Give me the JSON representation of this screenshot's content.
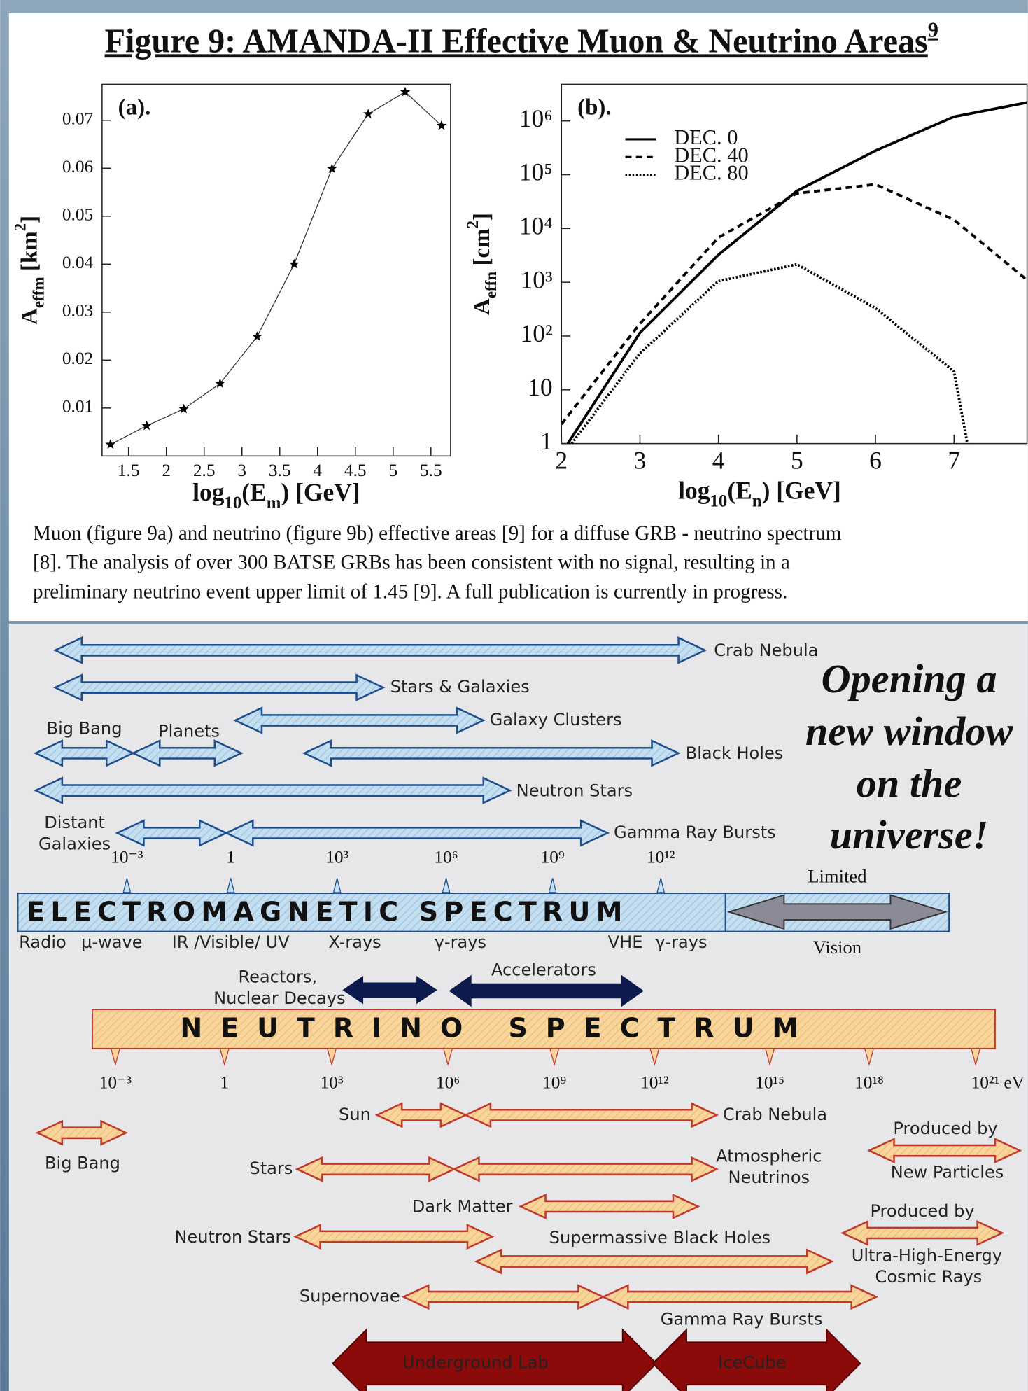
{
  "title": "Figure 9: AMANDA-II Effective Muon & Neutrino Areas",
  "title_superscript": "9",
  "chart_data": [
    {
      "type": "line",
      "panel_label": "(a).",
      "x_label": [
        "log",
        "10",
        "(E",
        "m",
        ") [GeV]"
      ],
      "y_label": [
        "A",
        "effm",
        " [km",
        "2",
        "]"
      ],
      "markers": "star",
      "xlim": [
        1.15,
        5.76
      ],
      "ylim": [
        0,
        0.0775
      ],
      "xticks": [
        1.5,
        2,
        2.5,
        3,
        3.5,
        4,
        4.5,
        5,
        5.5
      ],
      "yticks": [
        0.01,
        0.02,
        0.03,
        0.04,
        0.05,
        0.06,
        0.07
      ],
      "series": [
        {
          "color": "#333333",
          "dash": "solid",
          "x": [
            1.26,
            1.74,
            2.23,
            2.71,
            3.2,
            3.69,
            4.19,
            4.67,
            5.16,
            5.64
          ],
          "values": [
            0.0024,
            0.0063,
            0.0098,
            0.0151,
            0.0249,
            0.04,
            0.0599,
            0.0713,
            0.0759,
            0.0689
          ]
        }
      ]
    },
    {
      "type": "line",
      "panel_label": "(b).",
      "x_label": [
        "log",
        "10",
        "(E",
        "n",
        ") [GeV]"
      ],
      "y_label": [
        "A",
        "effn",
        " [cm",
        "2",
        "]"
      ],
      "log_y": true,
      "legend": "upper left",
      "xlim": [
        2,
        7.93
      ],
      "ylim": [
        1,
        4800000
      ],
      "xticks": [
        2,
        3,
        4,
        5,
        6,
        7
      ],
      "yticks": [
        1,
        10,
        {
          "value": 100,
          "label": "10²"
        },
        {
          "value": 1000,
          "label": "10³"
        },
        {
          "value": 10000,
          "label": "10⁴"
        },
        {
          "value": 100000,
          "label": "10⁵"
        },
        {
          "value": 1000000,
          "label": "10⁶"
        }
      ],
      "series": [
        {
          "name": "DEC. 0",
          "color": "#000000",
          "dash": "solid",
          "x": [
            2.08,
            3,
            4,
            5,
            6,
            7,
            7.93
          ],
          "values": [
            1,
            115,
            3240,
            50000,
            280000,
            1200000,
            2200000
          ]
        },
        {
          "name": "DEC. 40",
          "color": "#000000",
          "dash": "dashed",
          "x": [
            2,
            3,
            4,
            5,
            6,
            7,
            7.93
          ],
          "values": [
            2.3,
            170,
            6800,
            45000,
            66000,
            14500,
            1100
          ]
        },
        {
          "name": "DEC. 80",
          "color": "#000000",
          "dash": "dotted",
          "x": [
            2.13,
            3,
            4,
            5,
            6,
            7,
            7.17
          ],
          "values": [
            1,
            48,
            1050,
            2150,
            330,
            22,
            1
          ]
        }
      ]
    }
  ],
  "caption": [
    "Muon (figure 9a) and neutrino (figure 9b) effective areas [9] for a diffuse GRB - neutrino spectrum",
    "[8]. The analysis of over 300 BATSE GRBs has been consistent with no signal, resulting in a",
    "preliminary neutrino event upper limit of 1.45 [9]. A full publication is currently in progress."
  ],
  "diagram": {
    "em_sources": [
      "Crab Nebula",
      "Stars & Galaxies",
      "Galaxy Clusters",
      "Big Bang",
      "Planets",
      "Black Holes",
      "Neutron Stars",
      [
        "Distant",
        "Galaxies"
      ],
      "Gamma Ray Bursts"
    ],
    "em_scale": [
      "10⁻³",
      "1",
      "10³",
      "10⁶",
      "10⁹",
      "10¹²"
    ],
    "em_title": "ELECTROMAGNETIC SPECTRUM",
    "em_bands": [
      "Radio",
      "µ-wave",
      "IR /Visible/ UV",
      "X-rays",
      "γ-rays",
      "VHE",
      "γ-rays"
    ],
    "vision": [
      "Limited",
      "Vision"
    ],
    "nu_sources": [
      [
        "Reactors,",
        "Nuclear Decays"
      ],
      "Accelerators",
      "Sun",
      "Crab Nebula",
      "Big Bang",
      "Stars",
      [
        "Atmospheric",
        "Neutrinos"
      ],
      [
        "Produced by",
        "New Particles"
      ],
      "Dark Matter",
      [
        "Produced by",
        "Ultra-High-Energy",
        "Cosmic Rays"
      ],
      "Neutron Stars",
      "Supermassive Black Holes",
      "Supernovae",
      "Gamma Ray Bursts"
    ],
    "nu_title": "NEUTRINO SPECTRUM",
    "nu_scale": [
      "10⁻³",
      "1",
      "10³",
      "10⁶",
      "10⁹",
      "10¹²",
      "10¹⁵",
      "10¹⁸",
      "10²¹ eV"
    ],
    "experiments": [
      "Underground Lab",
      "IceCube"
    ],
    "slogan": [
      "Opening a",
      "new window",
      "on the",
      "universe!"
    ]
  }
}
